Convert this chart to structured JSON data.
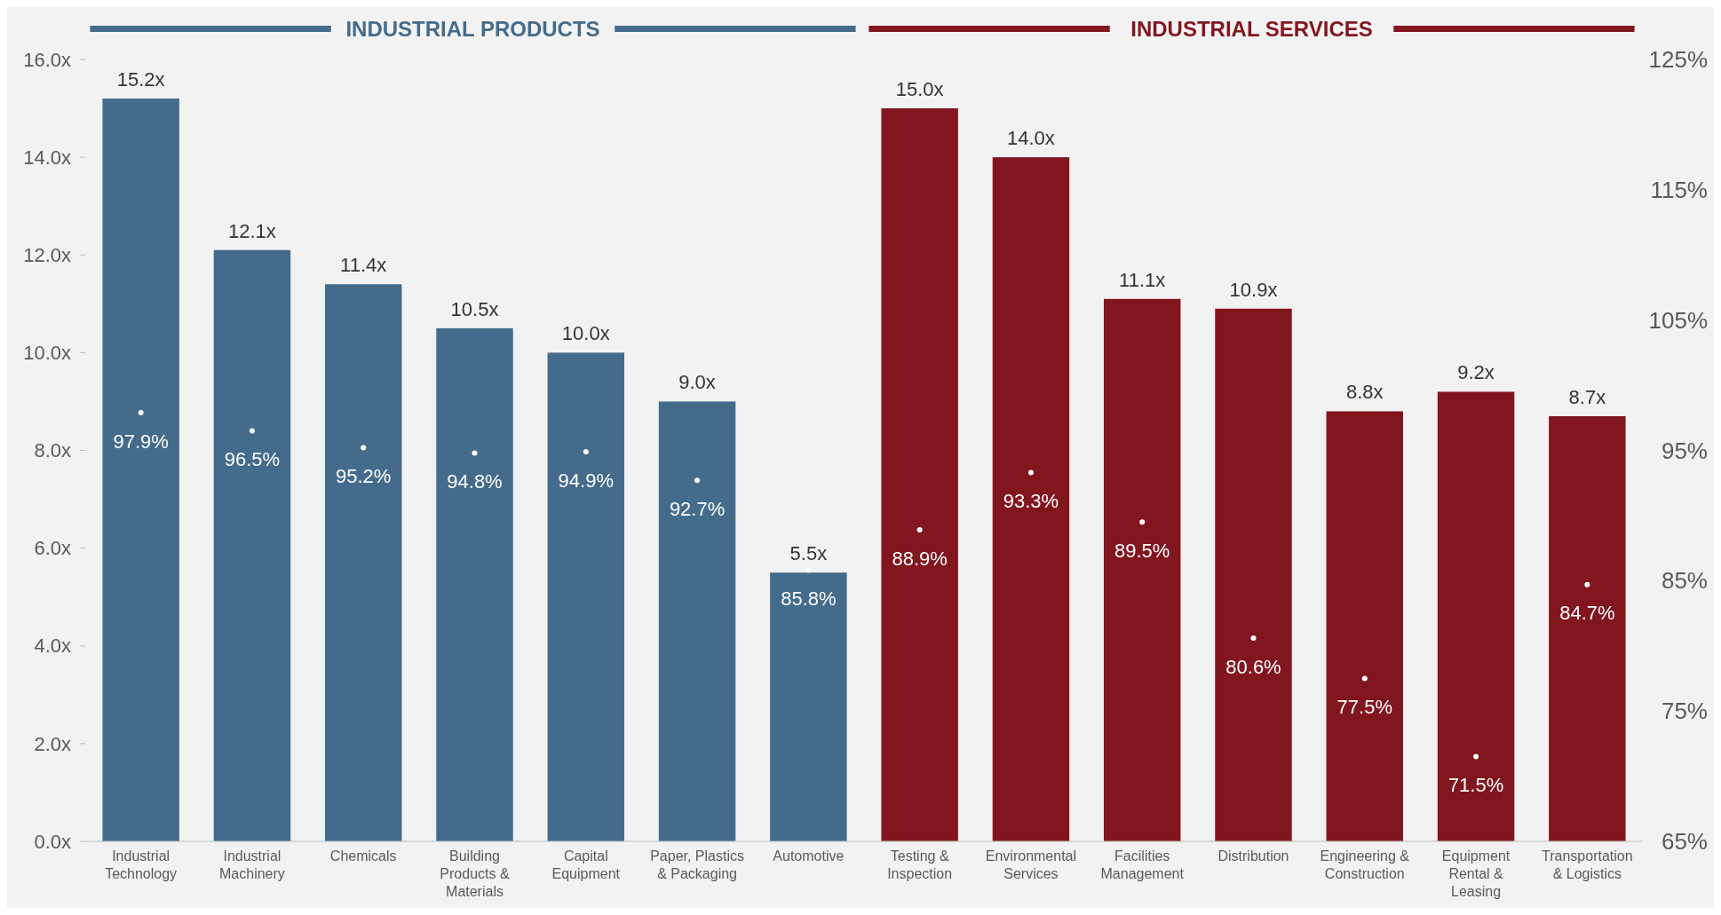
{
  "chart_data": {
    "type": "bar",
    "categories": [
      "Industrial Technology",
      "Industrial Machinery",
      "Chemicals",
      "Building Products & Materials",
      "Capital Equipment",
      "Paper, Plastics & Packaging",
      "Automotive",
      "Testing & Inspection",
      "Environmental Services",
      "Facilities Management",
      "Distribution",
      "Engineering & Construction",
      "Equipment Rental & Leasing",
      "Transportation & Logistics"
    ],
    "series": [
      {
        "values": [
          15.2,
          12.1,
          11.4,
          10.5,
          10.0,
          9.0,
          5.5,
          15.0,
          14.0,
          11.1,
          10.9,
          8.8,
          9.2,
          8.7
        ],
        "colors": [
          "#446b8b",
          "#446b8b",
          "#446b8b",
          "#446b8b",
          "#446b8b",
          "#446b8b",
          "#446b8b",
          "#81161f",
          "#81161f",
          "#81161f",
          "#81161f",
          "#81161f",
          "#81161f",
          "#81161f"
        ],
        "value_labels": [
          "15.2x",
          "12.1x",
          "11.4x",
          "10.5x",
          "10.0x",
          "9.0x",
          "5.5x",
          "15.0x",
          "14.0x",
          "11.1x",
          "10.9x",
          "8.8x",
          "9.2x",
          "8.7x"
        ]
      },
      {
        "type": "scatter",
        "axis": "y2",
        "marker": "circle",
        "color": "#ffffff",
        "values": [
          97.9,
          96.5,
          95.2,
          94.8,
          94.9,
          92.7,
          85.8,
          88.9,
          93.3,
          89.5,
          80.6,
          77.5,
          71.5,
          84.7
        ],
        "value_labels": [
          "97.9%",
          "96.5%",
          "95.2%",
          "94.8%",
          "94.9%",
          "92.7%",
          "85.8%",
          "88.9%",
          "93.3%",
          "89.5%",
          "80.6%",
          "77.5%",
          "71.5%",
          "84.7%"
        ]
      }
    ],
    "ylim": [
      0,
      16
    ],
    "yticks": [
      {
        "value": 0,
        "label": "0.0x"
      },
      {
        "value": 2,
        "label": "2.0x"
      },
      {
        "value": 4,
        "label": "4.0x"
      },
      {
        "value": 6,
        "label": "6.0x"
      },
      {
        "value": 8,
        "label": "8.0x"
      },
      {
        "value": 10,
        "label": "10.0x"
      },
      {
        "value": 12,
        "label": "12.0x"
      },
      {
        "value": 14,
        "label": "14.0x"
      },
      {
        "value": 16,
        "label": "16.0x"
      }
    ],
    "y2lim": [
      65,
      125
    ],
    "y2ticks": [
      {
        "value": 65,
        "label": "65%"
      },
      {
        "value": 75,
        "label": "75%"
      },
      {
        "value": 85,
        "label": "85%"
      },
      {
        "value": 95,
        "label": "95%"
      },
      {
        "value": 105,
        "label": "105%"
      },
      {
        "value": 115,
        "label": "115%"
      },
      {
        "value": 125,
        "label": "125%"
      }
    ],
    "annotations": [
      "INDUSTRIAL PRODUCTS",
      "INDUSTRIAL SERVICES"
    ],
    "grid": false
  }
}
